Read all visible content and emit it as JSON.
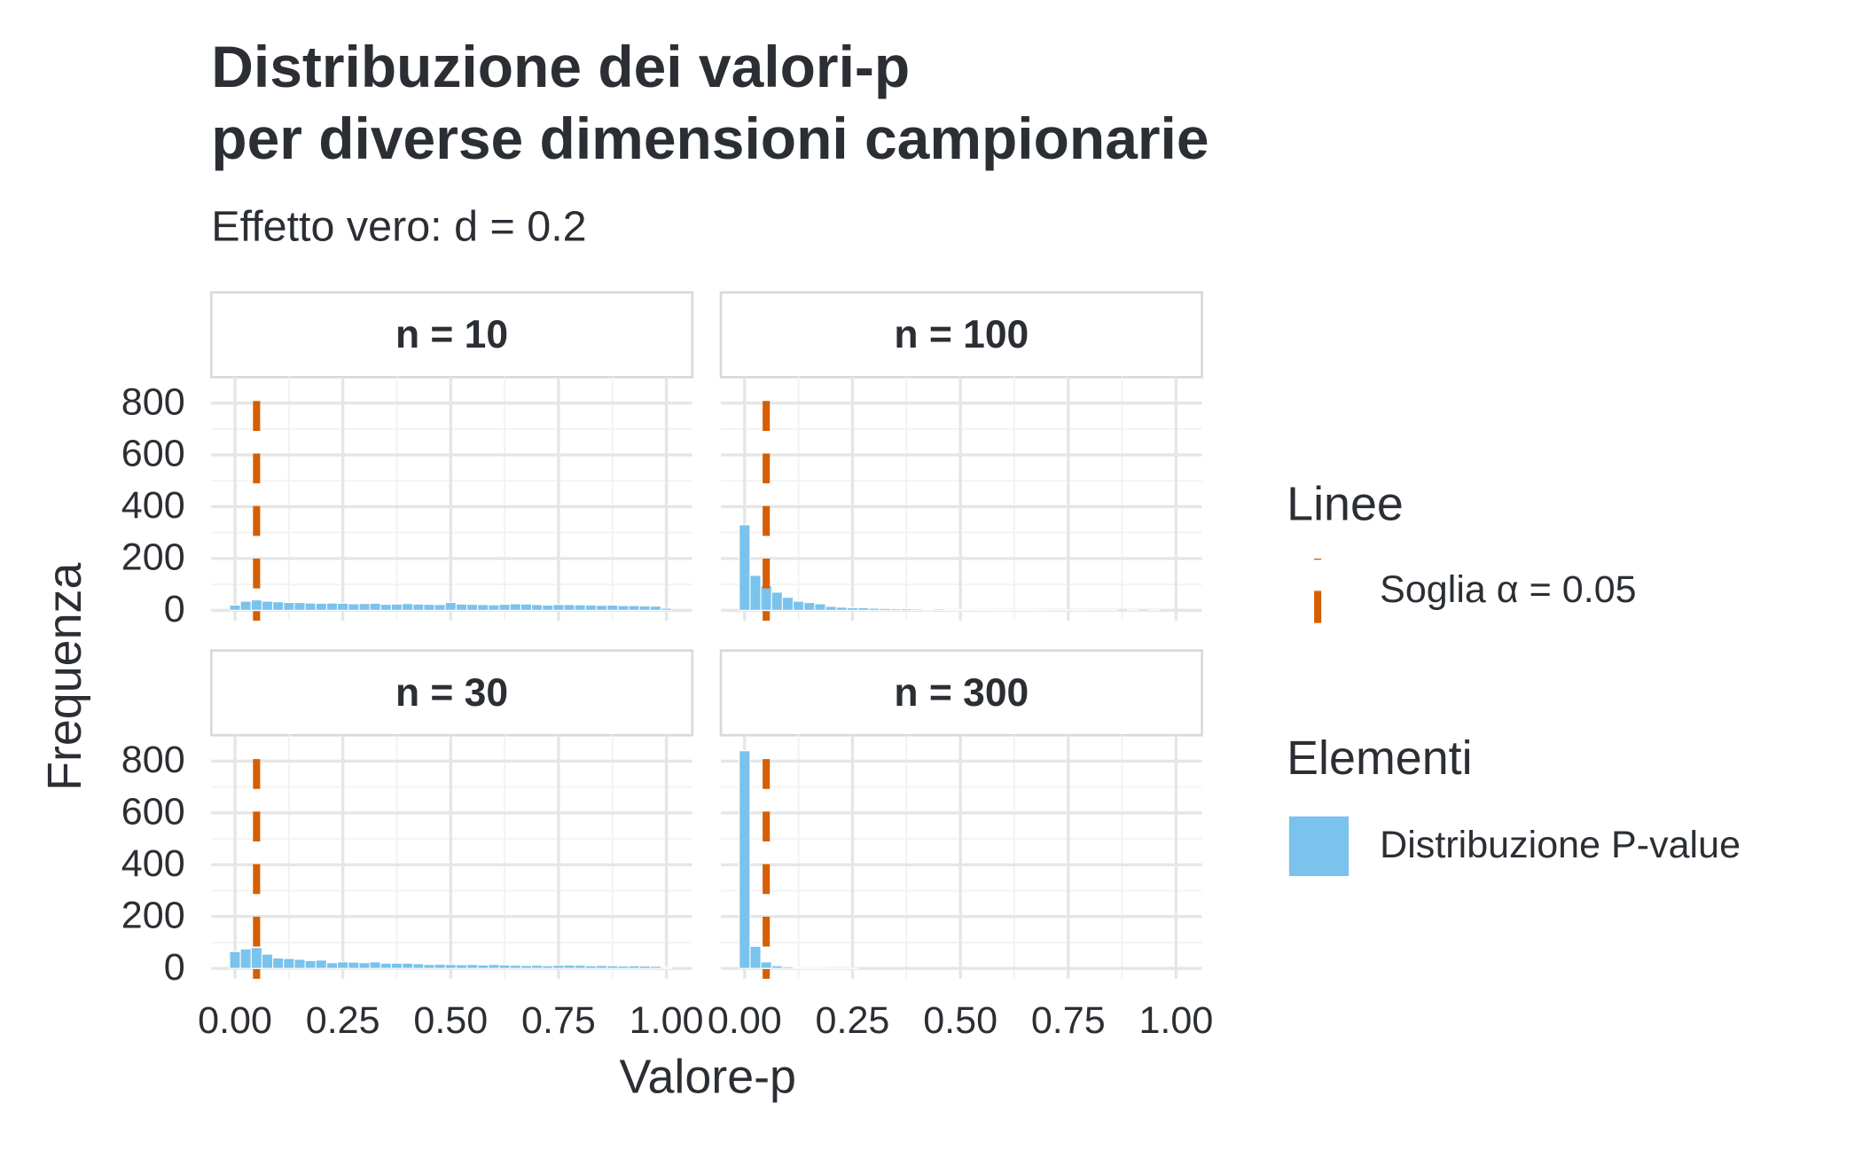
{
  "chart_data": {
    "type": "histogram",
    "title": [
      "Distribuzione dei valori-p",
      "per diverse dimensioni campionarie"
    ],
    "subtitle": "Effetto vero: d = 0.2",
    "xlabel": "Valore-p",
    "ylabel": "Frequenza",
    "bins": [
      -0.0125,
      0.0125,
      0.0375,
      0.0625,
      0.0875,
      0.1125,
      0.1375,
      0.1625,
      0.1875,
      0.2125,
      0.2375,
      0.2625,
      0.2875,
      0.3125,
      0.3375,
      0.3625,
      0.3875,
      0.4125,
      0.4375,
      0.4625,
      0.4875,
      0.5125,
      0.5375,
      0.5625,
      0.5875,
      0.6125,
      0.6375,
      0.6625,
      0.6875,
      0.7125,
      0.7375,
      0.7625,
      0.7875,
      0.8125,
      0.8375,
      0.8625,
      0.8875,
      0.9125,
      0.9375,
      0.9625,
      0.9875,
      1.0125
    ],
    "series_name": "Distribuzione P-value",
    "color": "#79c3ec",
    "facets": [
      {
        "label": "n = 10",
        "values": [
          20,
          35,
          40,
          35,
          33,
          30,
          30,
          28,
          27,
          28,
          27,
          25,
          26,
          27,
          23,
          24,
          26,
          24,
          23,
          22,
          30,
          24,
          23,
          22,
          21,
          23,
          25,
          24,
          22,
          20,
          22,
          22,
          21,
          20,
          19,
          20,
          18,
          18,
          17,
          16,
          8
        ]
      },
      {
        "label": "n = 100",
        "values": [
          330,
          135,
          95,
          70,
          50,
          35,
          30,
          25,
          15,
          12,
          10,
          10,
          8,
          7,
          6,
          6,
          5,
          4,
          5,
          3,
          3,
          4,
          3,
          2,
          2,
          2,
          3,
          2,
          1,
          1,
          1,
          2,
          1,
          1,
          1,
          0,
          1,
          0,
          1,
          0,
          0
        ]
      },
      {
        "label": "n = 30",
        "values": [
          65,
          75,
          80,
          55,
          40,
          38,
          35,
          30,
          32,
          22,
          25,
          24,
          22,
          25,
          20,
          20,
          20,
          18,
          15,
          16,
          15,
          14,
          15,
          13,
          15,
          13,
          12,
          11,
          12,
          10,
          12,
          13,
          12,
          10,
          11,
          10,
          9,
          10,
          9,
          8,
          4
        ]
      },
      {
        "label": "n = 300",
        "values": [
          840,
          85,
          25,
          10,
          6,
          3,
          2,
          2,
          1,
          1,
          1,
          0,
          0,
          0,
          0,
          0,
          0,
          0,
          0,
          0,
          0,
          0,
          0,
          0,
          0,
          0,
          0,
          0,
          0,
          0,
          0,
          0,
          0,
          0,
          0,
          0,
          0,
          0,
          0,
          0,
          0
        ]
      }
    ],
    "vline": {
      "value": 0.05,
      "name": "Soglia α = 0.05",
      "color": "#d55e00"
    },
    "legend_line_title": "Linee",
    "legend_fill_title": "Elementi",
    "xlim": [
      -0.055,
      1.06
    ],
    "xticks": [
      {
        "value": 0,
        "label": "0.00"
      },
      {
        "value": 0.25,
        "label": "0.25"
      },
      {
        "value": 0.5,
        "label": "0.50"
      },
      {
        "value": 0.75,
        "label": "0.75"
      },
      {
        "value": 1,
        "label": "1.00"
      }
    ],
    "ylim": [
      -40,
      900
    ],
    "yticks": [
      0,
      200,
      400,
      600,
      800
    ],
    "grid": true
  }
}
